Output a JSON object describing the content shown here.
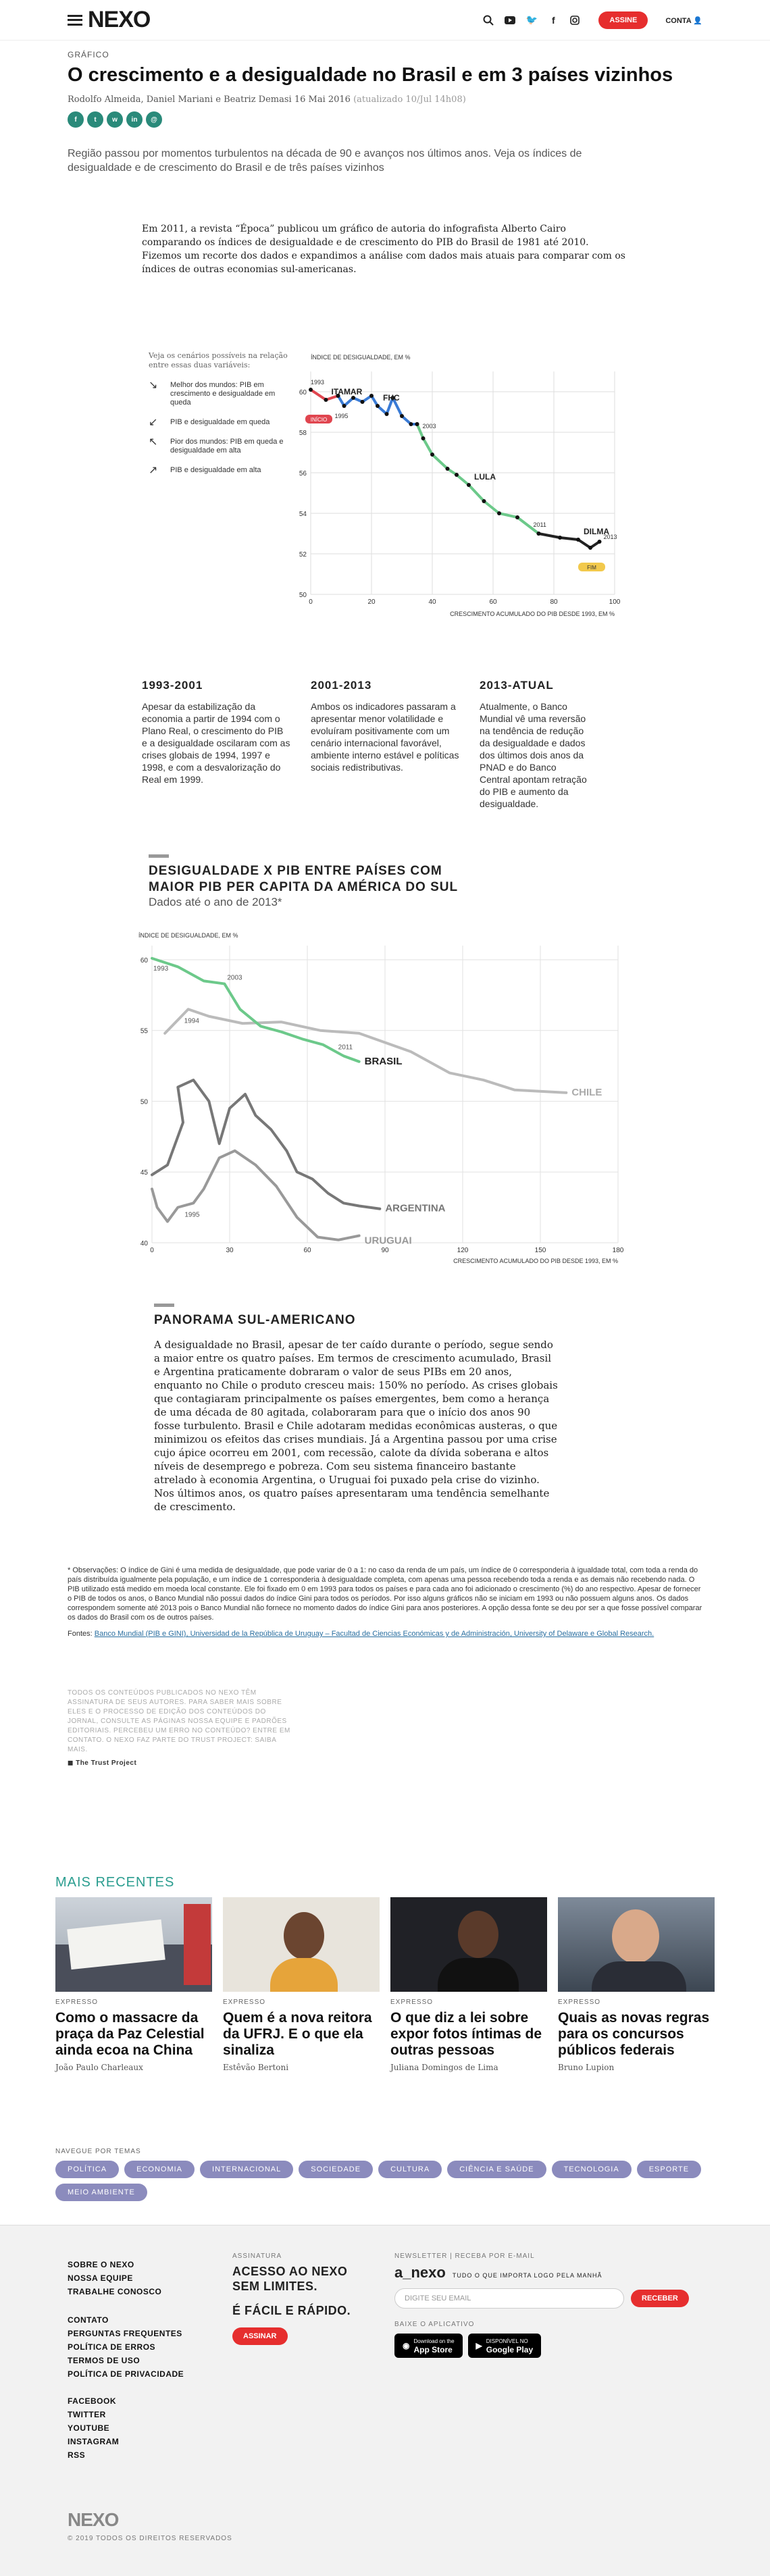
{
  "header": {
    "logo": "NEXO",
    "subscribe": "ASSINE",
    "account": "CONTA"
  },
  "article": {
    "kicker": "GRÁFICO",
    "title": "O crescimento e a desigualdade no Brasil e em 3 países vizinhos",
    "byline": "Rodolfo Almeida, Daniel Mariani e Beatriz Demasi 16 Mai 2016",
    "updated": "(atualizado 10/Jul 14h08)",
    "lead": "Região passou por momentos turbulentos na década de 90 e avanços nos últimos anos. Veja os índices de desigualdade e de crescimento do Brasil e de três países vizinhos",
    "intro": "Em 2011, a revista “Época” publicou um gráfico de autoria do infografista Alberto Cairo comparando os índices de desigualdade e de crescimento do PIB do Brasil de 1981 até 2010. Fizemos um recorte dos dados e expandimos a análise com dados mais atuais para comparar com os índices de outras economias sul-americanas."
  },
  "legend": {
    "note": "Veja os cenários possíveis na relação entre essas duas variáveis:",
    "items": [
      {
        "arrow": "↘",
        "text": "Melhor dos mundos: PIB em crescimento e desigualdade em queda"
      },
      {
        "arrow": "↙",
        "text": "PIB e desigualdade em queda"
      },
      {
        "arrow": "↖",
        "text": "Pior dos mundos: PIB em queda e desigualdade em alta"
      },
      {
        "arrow": "↗",
        "text": "PIB e desigualdade em alta"
      }
    ]
  },
  "chart_data": [
    {
      "type": "line",
      "ylabel": "ÍNDICE DE DESIGUALDADE, EM %",
      "xlabel": "CRESCIMENTO ACUMULADO DO PIB DESDE 1993, EM %",
      "xlim": [
        0,
        100
      ],
      "ylim": [
        50,
        61
      ],
      "xticks": [
        0,
        20,
        40,
        60,
        80,
        100
      ],
      "yticks": [
        50,
        52,
        54,
        56,
        58,
        60
      ],
      "series": [
        {
          "name": "ITAMAR",
          "color": "#e0454f",
          "x": [
            0,
            5,
            9
          ],
          "y": [
            60.1,
            59.6,
            59.8
          ]
        },
        {
          "name": "FHC",
          "color": "#3a7bd5",
          "x": [
            9,
            11,
            14,
            17,
            20,
            22,
            25,
            27,
            30,
            33,
            35
          ],
          "y": [
            59.8,
            59.3,
            59.7,
            59.5,
            59.8,
            59.3,
            58.9,
            59.7,
            58.8,
            58.4,
            58.4
          ]
        },
        {
          "name": "LULA",
          "color": "#6cc98a",
          "x": [
            35,
            37,
            40,
            45,
            48,
            52,
            57,
            62,
            68,
            75
          ],
          "y": [
            58.4,
            57.7,
            56.9,
            56.2,
            55.9,
            55.4,
            54.6,
            54.0,
            53.8,
            53.0
          ]
        },
        {
          "name": "DILMA",
          "color": "#222222",
          "x": [
            75,
            82,
            88,
            92,
            95
          ],
          "y": [
            53.0,
            52.8,
            52.7,
            52.3,
            52.6
          ]
        }
      ],
      "annotations": [
        "1993",
        "1995",
        "2003",
        "2011",
        "2013",
        "INÍCIO",
        "FIM"
      ]
    },
    {
      "type": "line",
      "title": "DESIGUALDADE X PIB ENTRE PAÍSES COM MAIOR PIB PER CAPITA DA AMÉRICA DO SUL",
      "subtitle": "Dados até o ano de 2013*",
      "ylabel": "ÍNDICE DE DESIGUALDADE, EM %",
      "xlabel": "CRESCIMENTO ACUMULADO DO PIB DESDE 1993, EM %",
      "xlim": [
        0,
        180
      ],
      "ylim": [
        40,
        61
      ],
      "xticks": [
        0,
        30,
        60,
        90,
        120,
        150,
        180
      ],
      "yticks": [
        40,
        45,
        50,
        55,
        60
      ],
      "series": [
        {
          "name": "BRASIL",
          "color": "#6cc98a",
          "x": [
            0,
            10,
            20,
            28,
            34,
            42,
            50,
            58,
            66,
            74,
            80
          ],
          "y": [
            60.1,
            59.5,
            58.5,
            58.3,
            56.5,
            55.3,
            54.9,
            54.4,
            54.0,
            53.2,
            52.8
          ]
        },
        {
          "name": "CHILE",
          "color": "#bbbbbb",
          "x": [
            5,
            14,
            22,
            35,
            50,
            65,
            80,
            100,
            115,
            128,
            140,
            160
          ],
          "y": [
            54.8,
            56.5,
            56.0,
            55.5,
            55.6,
            55.0,
            54.8,
            53.5,
            52.0,
            51.5,
            50.8,
            50.6
          ]
        },
        {
          "name": "ARGENTINA",
          "color": "#777777",
          "x": [
            0,
            6,
            12,
            10,
            16,
            22,
            26,
            30,
            36,
            40,
            46,
            52,
            56,
            62,
            68,
            74,
            80,
            88
          ],
          "y": [
            44.8,
            45.5,
            48.5,
            51.0,
            51.5,
            50.0,
            47.0,
            49.5,
            50.5,
            49.0,
            48.0,
            46.5,
            45.0,
            44.5,
            43.5,
            42.8,
            42.6,
            42.4
          ]
        },
        {
          "name": "URUGUAI",
          "color": "#999999",
          "x": [
            0,
            2,
            6,
            10,
            16,
            20,
            26,
            32,
            40,
            48,
            56,
            64,
            72,
            80
          ],
          "y": [
            43.8,
            42.5,
            41.5,
            42.5,
            42.8,
            43.8,
            46.0,
            46.5,
            45.5,
            44.0,
            41.8,
            40.4,
            40.2,
            40.5
          ]
        }
      ],
      "annotations": [
        "1993",
        "2003",
        "2011",
        "1994",
        "1995"
      ]
    }
  ],
  "periods": [
    {
      "title": "1993-2001",
      "text": "Apesar da estabilização da economia a partir de 1994 com o Plano Real, o crescimento do PIB e a desigualdade oscilaram com as crises globais de 1994, 1997 e 1998, e com a desvalorização do Real em 1999."
    },
    {
      "title": "2001-2013",
      "text": "Ambos os indicadores passaram a apresentar menor volatilidade e evoluíram positivamente com um cenário internacional favorável, ambiente interno estável e políticas sociais redistributivas."
    },
    {
      "title": "2013-ATUAL",
      "text": "Atualmente, o Banco Mundial vê uma reversão na tendência de redução da desigualdade e dados dos últimos dois anos da PNAD e do Banco Central apontam retração do PIB e aumento da desigualdade."
    }
  ],
  "panorama": {
    "title": "PANORAMA SUL-AMERICANO",
    "text": "A desigualdade no Brasil, apesar de ter caído durante o período, segue sendo a maior entre os quatro países. Em termos de crescimento acumulado, Brasil e Argentina praticamente dobraram o valor de seus PIBs em 20 anos, enquanto no Chile o produto cresceu mais: 150% no período. As crises globais que contagiaram principalmente os países emergentes, bem como a herança de uma década de 80 agitada, colaboraram para que o início dos anos 90 fosse turbulento. Brasil e Chile adotaram medidas econômicas austeras, o que minimizou os efeitos das crises mundiais. Já a Argentina passou por uma crise cujo ápice ocorreu em 2001, com recessão, calote da dívida soberana e altos níveis de desemprego e pobreza. Com seu sistema financeiro bastante atrelado à economia Argentina, o Uruguai foi puxado pela crise do vizinho. Nos últimos anos, os quatro países apresentaram uma tendência semelhante de crescimento."
  },
  "obs": "* Observações: O índice de Gini é uma medida de desigualdade, que pode variar de 0 a 1: no caso da renda de um país, um índice de 0 corresponderia à igualdade total, com toda a renda do país distribuída igualmente pela população, e um índice de 1 corresponderia à desigualdade completa, com apenas uma pessoa recebendo toda a renda e as demais não recebendo nada. O PIB utilizado está medido em moeda local constante. Ele foi fixado em 0 em 1993 para todos os países e para cada ano foi adicionado o crescimento (%) do ano respectivo. Apesar de fornecer o PIB de todos os anos, o Banco Mundial não possui dados do índice Gini para todos os períodos. Por isso alguns gráficos não se iniciam em 1993 ou não possuem alguns anos. Os dados correspondem somente até 2013 pois o Banco Mundial não fornece no momento dados do índice Gini para anos posteriores. A opção dessa fonte se deu por ser a que fosse possível comparar os dados do Brasil com os de outros países.",
  "sources": {
    "label": "Fontes:",
    "text": "Banco Mundial (PIB e GINI), Universidad de la República de Uruguay – Facultad de Ciencias Económicas y de Administración, University of Delaware e Global Research."
  },
  "trust": {
    "text": "TODOS OS CONTEÚDOS PUBLICADOS NO NEXO TÊM ASSINATURA DE SEUS AUTORES. PARA SABER MAIS SOBRE ELES E O PROCESSO DE EDIÇÃO DOS CONTEÚDOS DO JORNAL, CONSULTE AS PÁGINAS NOSSA EQUIPE E PADRÕES EDITORIAIS. PERCEBEU UM ERRO NO CONTEÚDO? ENTRE EM CONTATO. O NEXO FAZ PARTE DO TRUST PROJECT: SAIBA MAIS.",
    "badge": "The Trust Project"
  },
  "mais": {
    "title": "MAIS RECENTES",
    "cards": [
      {
        "tag": "EXPRESSO",
        "title": "Como o massacre da praça da Paz Celestial ainda ecoa na China",
        "author": "João Paulo Charleaux"
      },
      {
        "tag": "EXPRESSO",
        "title": "Quem é a nova reitora da UFRJ. E o que ela sinaliza",
        "author": "Estêvão Bertoni"
      },
      {
        "tag": "EXPRESSO",
        "title": "O que diz a lei sobre expor fotos íntimas de outras pessoas",
        "author": "Juliana Domingos de Lima"
      },
      {
        "tag": "EXPRESSO",
        "title": "Quais as novas regras para os concursos públicos federais",
        "author": "Bruno Lupion"
      }
    ]
  },
  "temas": {
    "label": "NAVEGUE POR TEMAS",
    "items": [
      "POLÍTICA",
      "ECONOMIA",
      "INTERNACIONAL",
      "SOCIEDADE",
      "CULTURA",
      "CIÊNCIA E SAÚDE",
      "TECNOLOGIA",
      "ESPORTE",
      "MEIO AMBIENTE"
    ]
  },
  "footer": {
    "links1": [
      "SOBRE O NEXO",
      "NOSSA EQUIPE",
      "TRABALHE CONOSCO"
    ],
    "links2": [
      "CONTATO",
      "PERGUNTAS FREQUENTES",
      "POLÍTICA DE ERROS",
      "TERMOS DE USO",
      "POLÍTICA DE PRIVACIDADE"
    ],
    "social": [
      "FACEBOOK",
      "TWITTER",
      "YOUTUBE",
      "INSTAGRAM",
      "RSS"
    ],
    "assin_h": "ASSINATURA",
    "assin_big1": "ACESSO AO NEXO SEM LIMITES.",
    "assin_big2": "É FÁCIL E RÁPIDO.",
    "assin_btn": "ASSINAR",
    "news_h": "NEWSLETTER | RECEBA POR E-MAIL",
    "news_brand": "a_nexo",
    "news_tag": "TUDO O QUE IMPORTA LOGO PELA MANHÃ",
    "news_ph": "DIGITE SEU EMAIL",
    "news_btn": "RECEBER",
    "app_h": "BAIXE O APLICATIVO",
    "appstore": "App Store",
    "gplay": "Google Play",
    "appstore_small": "Download on the",
    "gplay_small": "DISPONÍVEL NO",
    "logo": "NEXO",
    "copy": "© 2019 TODOS OS DIREITOS RESERVADOS"
  }
}
